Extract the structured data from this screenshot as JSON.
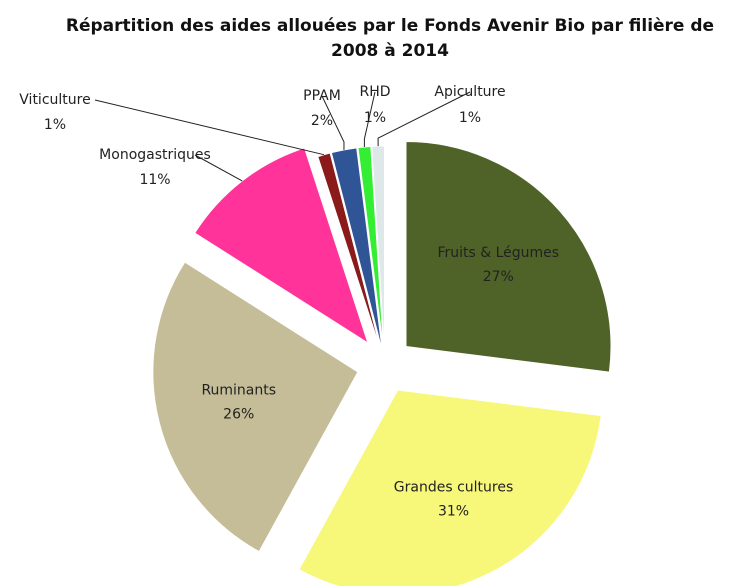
{
  "chart_data": {
    "type": "pie",
    "title": "Répartition des aides allouées par le Fonds Avenir Bio par filière de 2008 à 2014",
    "categories": [
      "Fruits & Légumes",
      "Grandes cultures",
      "Ruminants",
      "Monogastriques",
      "Viticulture",
      "PPAM",
      "RHD",
      "Apiculture"
    ],
    "values": [
      27,
      31,
      26,
      11,
      1,
      2,
      1,
      1
    ],
    "value_labels": [
      "27%",
      "31%",
      "26%",
      "11%",
      "1%",
      "2%",
      "1%",
      "1%"
    ],
    "colors": [
      "#4f6228",
      "#f7f77a",
      "#c4bd97",
      "#ff3399",
      "#8b1a1a",
      "#2f5597",
      "#33ee33",
      "#dfe8e8"
    ]
  }
}
